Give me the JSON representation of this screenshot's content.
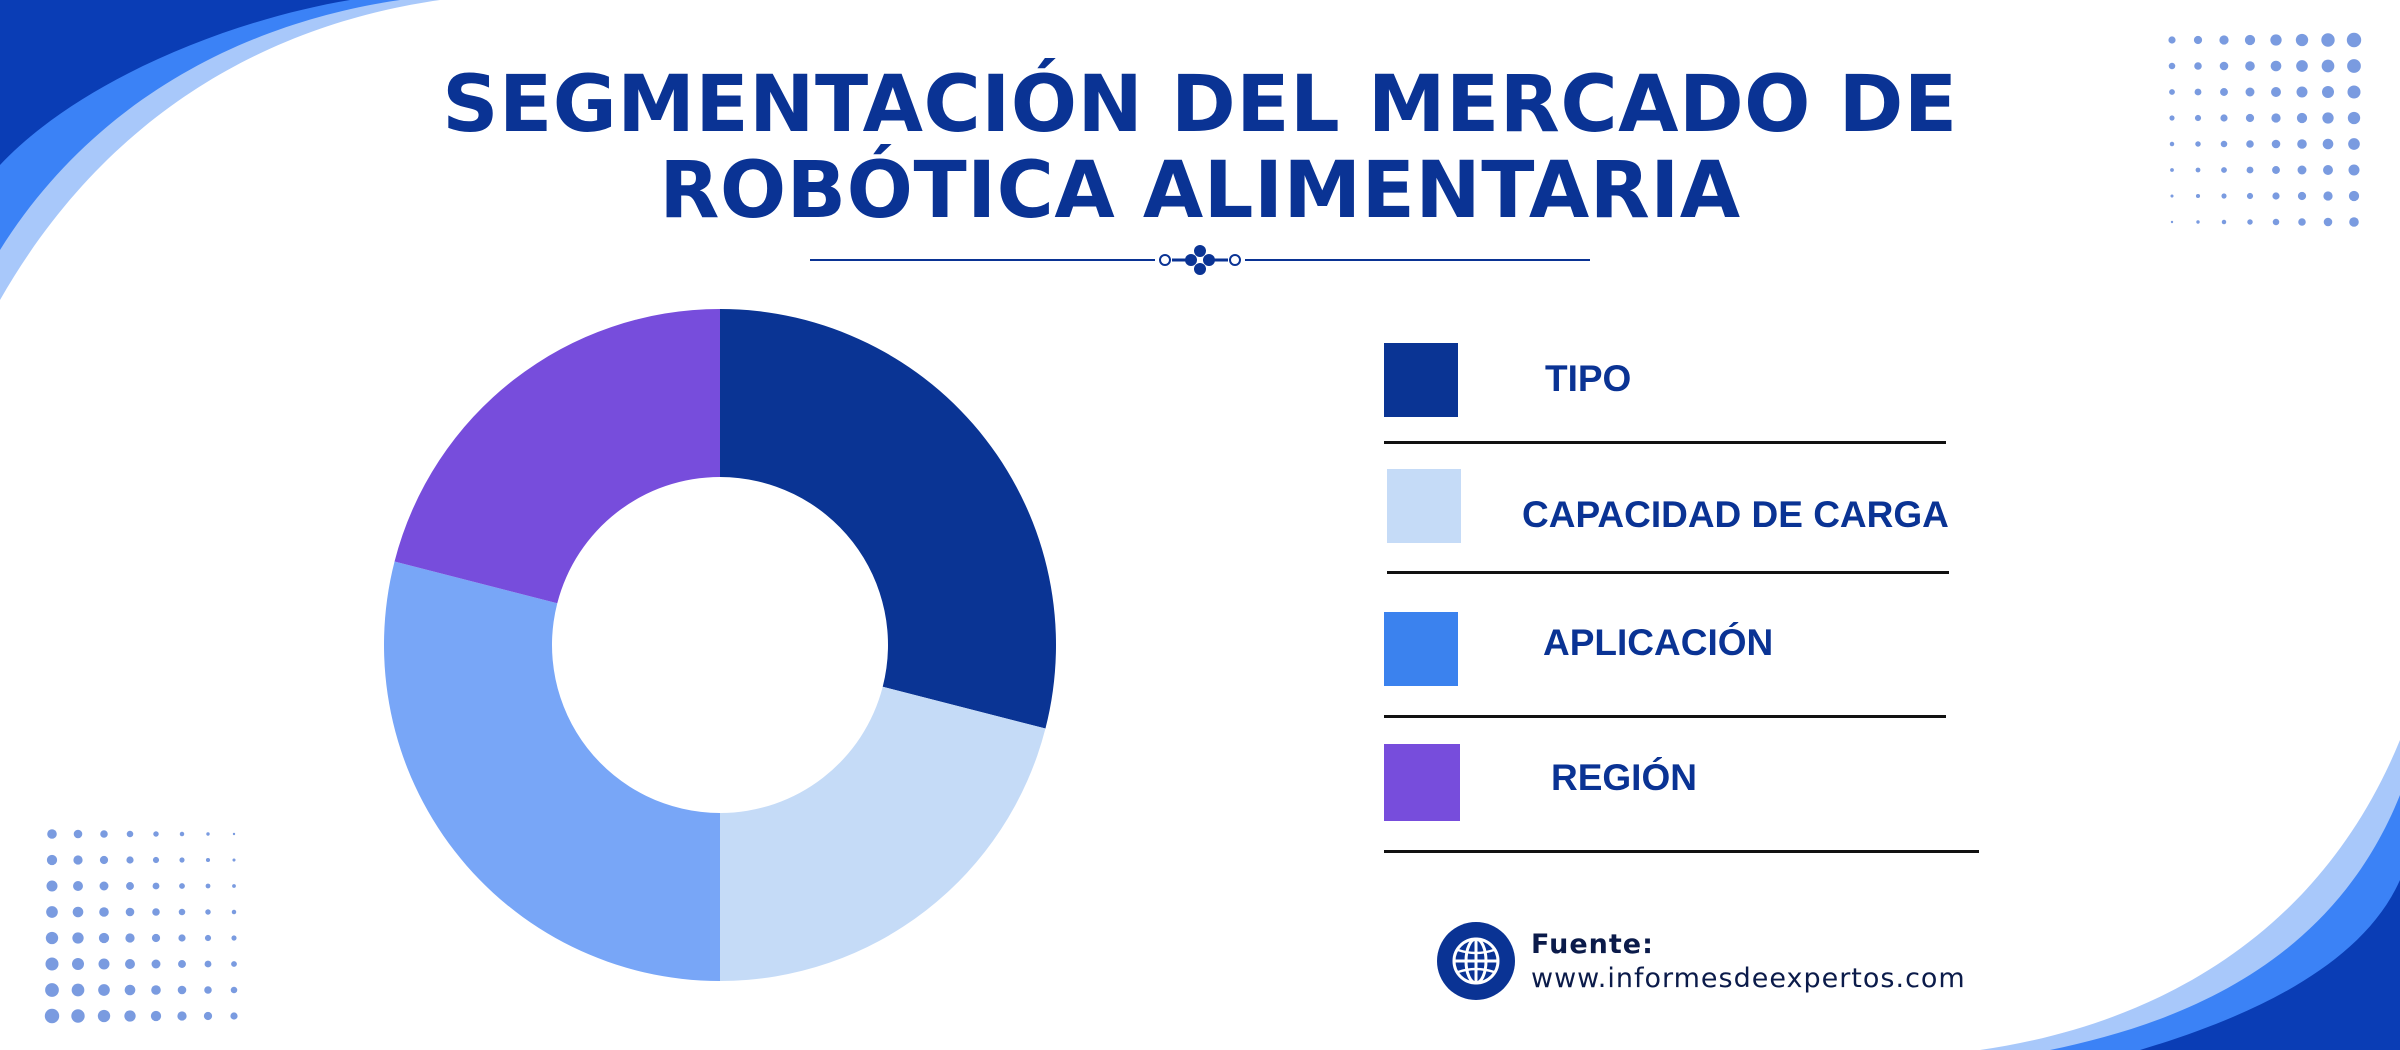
{
  "title_lines": [
    "SEGMENTACIÓN DEL MERCADO DE",
    "ROBÓTICA ALIMENTARIA"
  ],
  "legend": [
    {
      "label": "TIPO",
      "color": "#0a3494"
    },
    {
      "label": "CAPACIDAD DE CARGA",
      "color": "#c5dbf7"
    },
    {
      "label": "APLICACIÓN",
      "color": "#3b82ee"
    },
    {
      "label": "REGIÓN",
      "color": "#774ddc"
    }
  ],
  "source": {
    "label": "Fuente:",
    "url": "www.informesdeexpertos.com"
  },
  "icons": {
    "source": "globe-icon",
    "divider": "flourish-divider-ornament"
  },
  "colors": {
    "title": "#0a3394",
    "deco_dark": "#0a3db5",
    "deco_mid": "#3b82f6",
    "deco_light": "#a8c8fa",
    "dots": "#7a9be0"
  },
  "chart_data": {
    "type": "pie",
    "donut": true,
    "categories": [
      "TIPO",
      "CAPACIDAD DE CARGA",
      "APLICACIÓN",
      "REGIÓN"
    ],
    "values": [
      29,
      21,
      29,
      21
    ],
    "colors": [
      "#0a3494",
      "#c5dbf7",
      "#78a6f7",
      "#774ddc"
    ],
    "title": "SEGMENTACIÓN DEL MERCADO DE ROBÓTICA ALIMENTARIA",
    "legend_position": "right"
  }
}
